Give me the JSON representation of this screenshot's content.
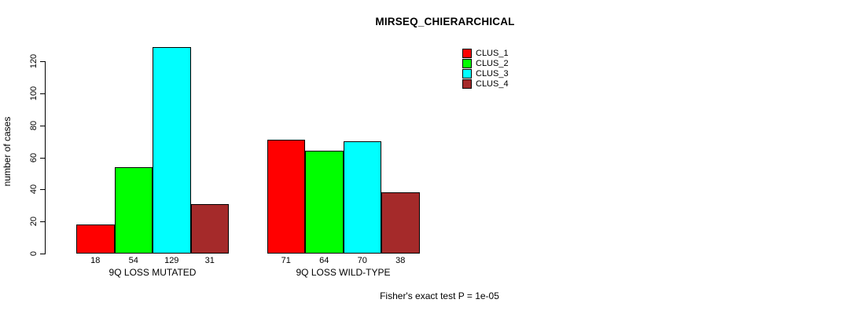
{
  "title": "MIRSEQ_CHIERARCHICAL",
  "footer": "Fisher's exact test P = 1e-05",
  "chart_data": {
    "type": "bar",
    "title": "MIRSEQ_CHIERARCHICAL",
    "xlabel": "",
    "ylabel": "number of cases",
    "ylim": [
      0,
      129
    ],
    "yticks": [
      0,
      20,
      40,
      60,
      80,
      100,
      120
    ],
    "grid": false,
    "legend_position": "top-right",
    "bar_value_labels_shown": true,
    "categories": [
      "9Q LOSS MUTATED",
      "9Q LOSS WILD-TYPE"
    ],
    "series": [
      {
        "name": "CLUS_1",
        "color": "#ff0000",
        "values": [
          18,
          71
        ]
      },
      {
        "name": "CLUS_2",
        "color": "#00ff00",
        "values": [
          54,
          64
        ]
      },
      {
        "name": "CLUS_3",
        "color": "#00ffff",
        "values": [
          129,
          70
        ]
      },
      {
        "name": "CLUS_4",
        "color": "#a52a2a",
        "values": [
          31,
          38
        ]
      }
    ],
    "annotation": "Fisher's exact test P = 1e-05"
  }
}
